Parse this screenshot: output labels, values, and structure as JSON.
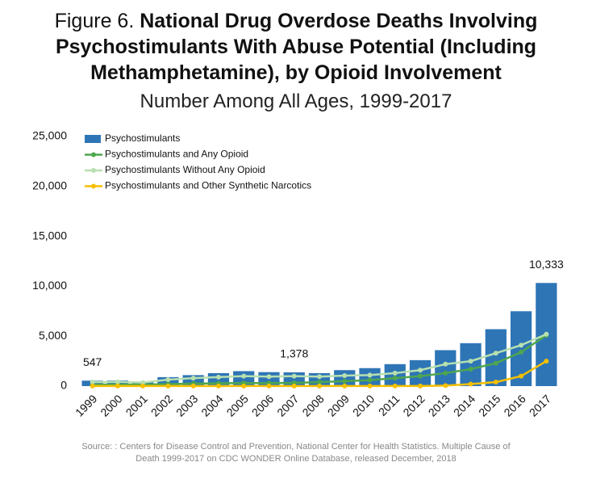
{
  "chart_data": {
    "type": "bar-line",
    "figure_label": "Figure 6.",
    "title": "National Drug Overdose Deaths Involving Psychostimulants With Abuse Potential (Including Methamphetamine), by Opioid Involvement",
    "subtitle": "Number Among All Ages, 1999-2017",
    "source": "Source: : Centers for Disease Control and Prevention, National Center for Health Statistics. Multiple Cause of Death 1999-2017 on CDC WONDER Online Database, released December, 2018",
    "categories": [
      "1999",
      "2000",
      "2001",
      "2002",
      "2003",
      "2004",
      "2005",
      "2006",
      "2007",
      "2008",
      "2009",
      "2010",
      "2011",
      "2012",
      "2013",
      "2014",
      "2015",
      "2016",
      "2017"
    ],
    "ylim": [
      0,
      25000
    ],
    "yticks": [
      0,
      {
        "value": 5000,
        "label": "5,000"
      },
      {
        "value": 10000,
        "label": "10,000"
      },
      {
        "value": 15000,
        "label": "15,000"
      },
      {
        "value": 20000,
        "label": "20,000"
      },
      {
        "value": 25000,
        "label": "25,000"
      }
    ],
    "legend": "top-left",
    "series": [
      {
        "name": "Psychostimulants",
        "kind": "bar",
        "color": "#2e75b6",
        "values": [
          547,
          560,
          450,
          900,
          1100,
          1300,
          1500,
          1400,
          1378,
          1300,
          1600,
          1800,
          2200,
          2600,
          3600,
          4300,
          5700,
          7500,
          10333
        ],
        "value_labels": [
          "547",
          null,
          null,
          null,
          null,
          null,
          null,
          null,
          "1,378",
          null,
          null,
          null,
          null,
          null,
          null,
          null,
          null,
          null,
          "10,333"
        ]
      },
      {
        "name": "Psychostimulants and Any Opioid",
        "kind": "line",
        "color": "#4ea64e",
        "values": [
          150,
          150,
          150,
          200,
          250,
          280,
          300,
          300,
          320,
          400,
          500,
          600,
          800,
          1000,
          1300,
          1700,
          2300,
          3400,
          5100
        ]
      },
      {
        "name": "Psychostimulants Without Any Opioid",
        "kind": "line",
        "color": "#b7e0b0",
        "values": [
          400,
          420,
          350,
          650,
          800,
          900,
          1000,
          950,
          1000,
          950,
          1050,
          1100,
          1300,
          1600,
          2200,
          2500,
          3300,
          4100,
          5200
        ]
      },
      {
        "name": "Psychostimulants and Other Synthetic Narcotics",
        "kind": "line",
        "color": "#f5c000",
        "values": [
          10,
          10,
          10,
          10,
          10,
          10,
          10,
          10,
          10,
          10,
          10,
          10,
          10,
          10,
          50,
          200,
          400,
          1000,
          2500
        ]
      }
    ]
  }
}
